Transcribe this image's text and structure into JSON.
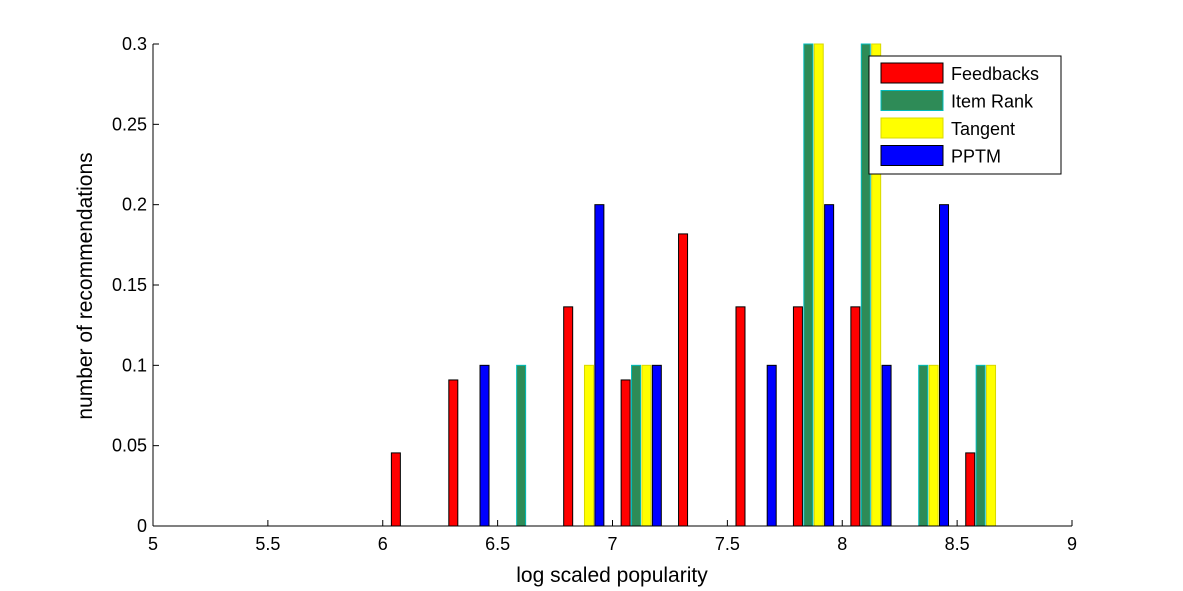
{
  "chart_data": {
    "type": "bar",
    "xlabel": "log scaled popularity",
    "ylabel": "number of recommendations",
    "xlim": [
      5,
      9
    ],
    "ylim": [
      0,
      0.3
    ],
    "xticks": [
      "5",
      "5.5",
      "6",
      "6.5",
      "7",
      "7.5",
      "8",
      "8.5",
      "9"
    ],
    "yticks": [
      "0",
      "0.05",
      "0.1",
      "0.15",
      "0.2",
      "0.25",
      "0.3"
    ],
    "bin_centers": [
      5.125,
      5.375,
      5.625,
      5.875,
      6.125,
      6.375,
      6.625,
      6.875,
      7.125,
      7.375,
      7.625,
      7.875,
      8.125,
      8.375,
      8.625,
      8.875
    ],
    "series": [
      {
        "name": "Feedbacks",
        "color": "#ff0000",
        "edge": "#000000",
        "values": [
          0,
          0,
          0,
          0,
          0.0455,
          0.0909,
          0,
          0.1364,
          0.0909,
          0.1818,
          0.1364,
          0.1364,
          0.1364,
          0,
          0.0455,
          0
        ]
      },
      {
        "name": "Item Rank",
        "color": "#2e8b57",
        "edge": "#00bcbc",
        "values": [
          0,
          0,
          0,
          0,
          0,
          0,
          0.1,
          0,
          0.1,
          0,
          0,
          0.3,
          0.3,
          0.1,
          0.1,
          0
        ]
      },
      {
        "name": "Tangent",
        "color": "#ffff00",
        "edge": "#d8d800",
        "values": [
          0,
          0,
          0,
          0,
          0,
          0,
          0,
          0.1,
          0.1,
          0,
          0,
          0.3,
          0.3,
          0.1,
          0.1,
          0
        ]
      },
      {
        "name": "PPTM",
        "color": "#0000ff",
        "edge": "#000000",
        "values": [
          0,
          0,
          0,
          0,
          0,
          0.1,
          0,
          0.2,
          0.1,
          0,
          0.1,
          0.2,
          0.1,
          0.2,
          0,
          0
        ]
      }
    ],
    "legend_position": "top-right",
    "grid": false
  }
}
